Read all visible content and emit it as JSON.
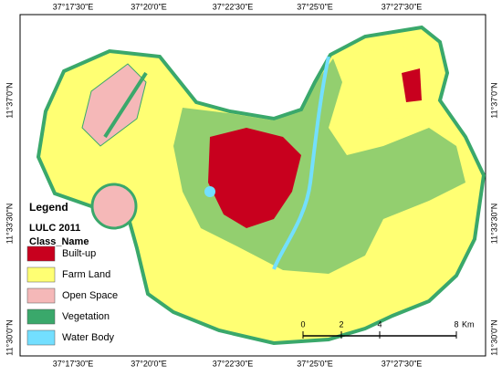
{
  "grid_labels": {
    "top": [
      "37°17'30\"E",
      "37°20'0\"E",
      "37°22'30\"E",
      "37°25'0\"E",
      "37°27'30\"E"
    ],
    "bottom": [
      "37°17'30\"E",
      "37°20'0\"E",
      "37°22'30\"E",
      "37°25'0\"E",
      "37°27'30\"E"
    ],
    "left": [
      "11°37'0\"N",
      "11°33'30\"N",
      "11°30'0\"N"
    ],
    "right": [
      "11°37'0\"N",
      "11°33'30\"N",
      "11°30'0\"N"
    ]
  },
  "legend": {
    "title": "Legend",
    "layer": "LULC 2011",
    "field": "Class_Name",
    "items": [
      {
        "label": "Built-up",
        "color": "#c8001e"
      },
      {
        "label": "Farm Land",
        "color": "#ffff73"
      },
      {
        "label": "Open Space",
        "color": "#f5b8b8"
      },
      {
        "label": "Vegetation",
        "color": "#3aa86b"
      },
      {
        "label": "Water Body",
        "color": "#73dfff"
      }
    ]
  },
  "scale_bar": {
    "ticks": [
      0,
      2,
      4,
      8
    ],
    "unit": "Km"
  }
}
